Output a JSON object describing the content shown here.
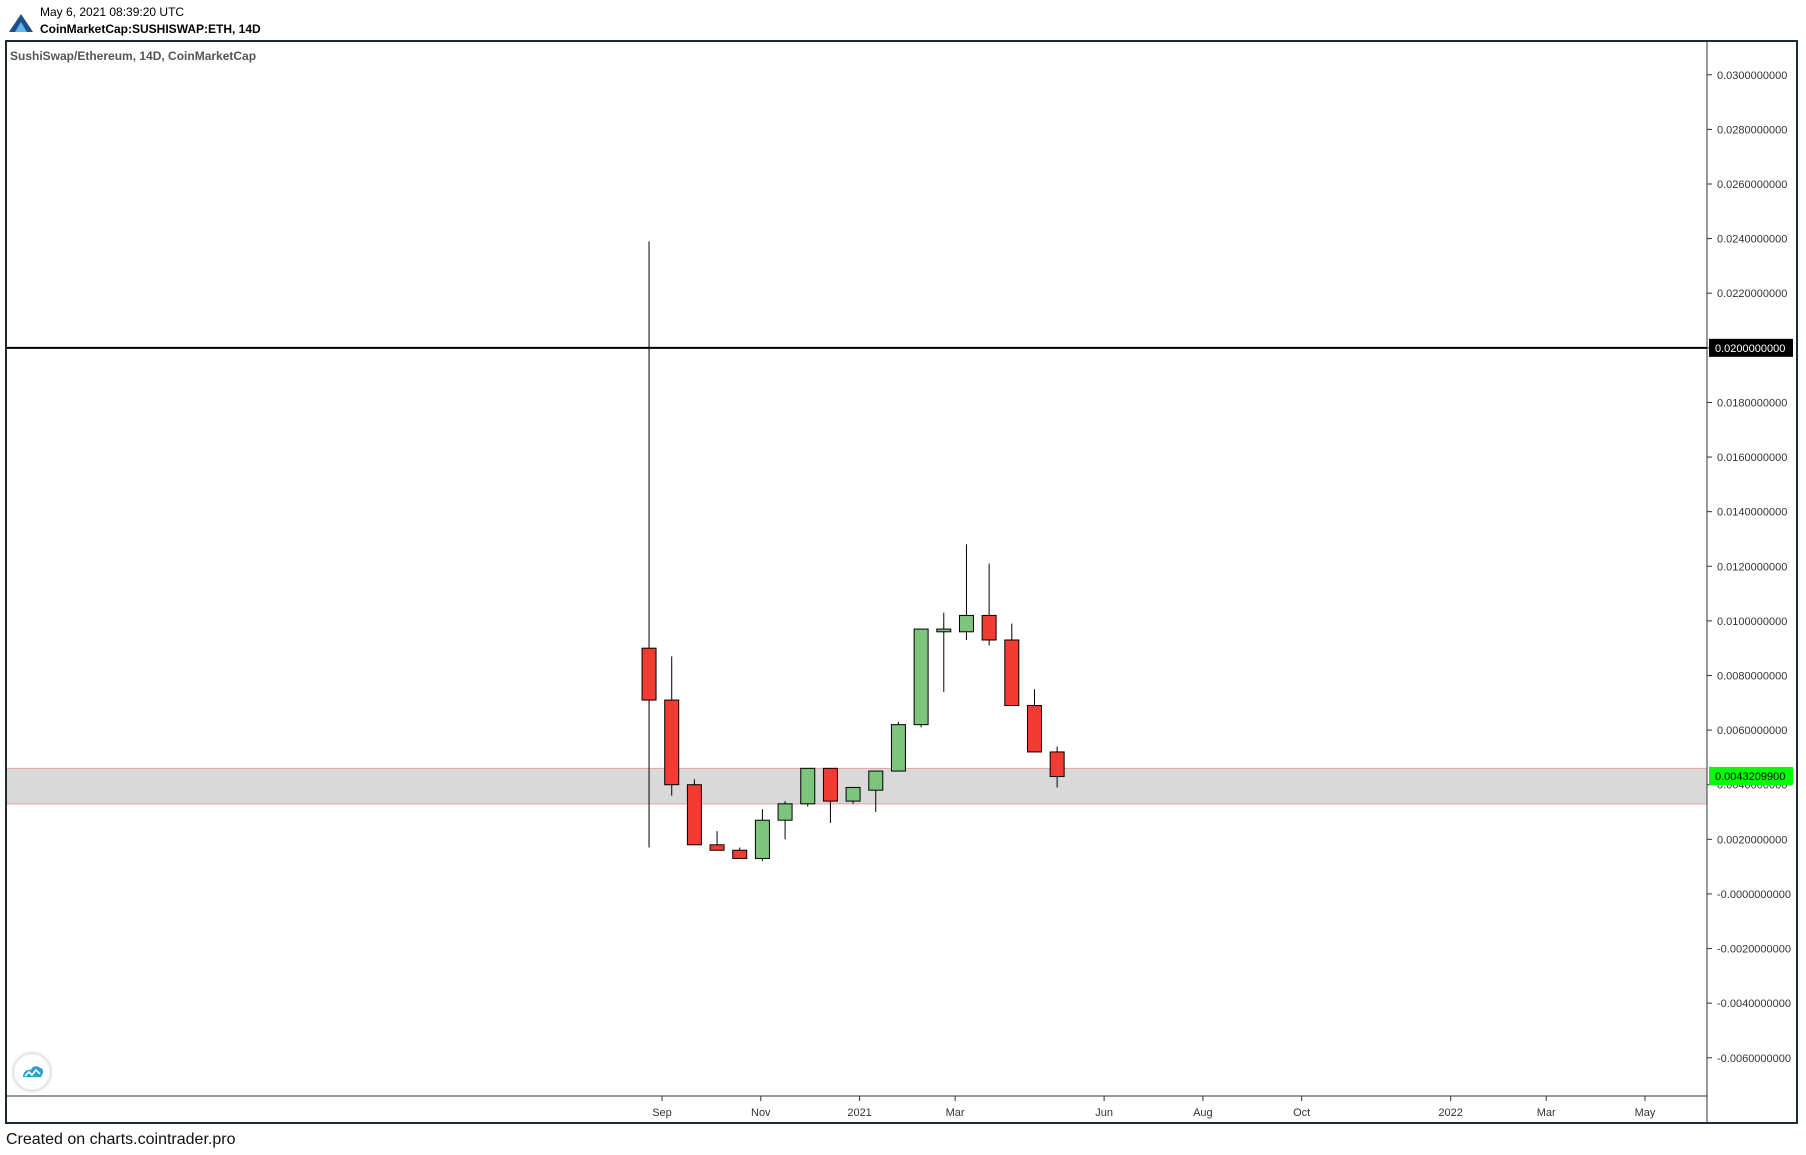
{
  "header": {
    "date": "May 6, 2021 08:39:20 UTC",
    "symbol": "CoinMarketCap:SUSHISWAP:ETH, 14D"
  },
  "chart_title": "SushiSwap/Ethereum, 14D, CoinMarketCap",
  "footer": "Created on charts.cointrader.pro",
  "icons": {
    "logo": "cointrader-logo-icon",
    "badge": "tradingview-icon"
  },
  "colors": {
    "up": "#7dc47d",
    "down": "#f23c32",
    "zone_fill": "#d9d9d9",
    "zone_border": "#e8a0a0",
    "hline": "#000000",
    "price_label_bg": "#00ff00",
    "level_label_bg": "#000000",
    "frame": "#1a2b3c"
  },
  "chart_data": {
    "type": "candlestick",
    "title": "SushiSwap/Ethereum, 14D, CoinMarketCap",
    "ylim": [
      -0.0074,
      0.0312
    ],
    "y_ticks": [
      "0.0300000000",
      "0.0280000000",
      "0.0260000000",
      "0.0240000000",
      "0.0220000000",
      "0.0200000000",
      "0.0180000000",
      "0.0160000000",
      "0.0140000000",
      "0.0120000000",
      "0.0100000000",
      "0.0080000000",
      "0.0060000000",
      "0.0040000000",
      "0.0020000000",
      "-0.0000000000",
      "-0.0020000000",
      "-0.0040000000",
      "-0.0060000000"
    ],
    "x_ticks": [
      {
        "label": "Sep",
        "date": "2020-09-01"
      },
      {
        "label": "Nov",
        "date": "2020-11-01"
      },
      {
        "label": "2021",
        "date": "2021-01-01"
      },
      {
        "label": "Mar",
        "date": "2021-03-01"
      },
      {
        "label": "Jun",
        "date": "2021-06-01"
      },
      {
        "label": "Aug",
        "date": "2021-08-01"
      },
      {
        "label": "Oct",
        "date": "2021-10-01"
      },
      {
        "label": "2022",
        "date": "2022-01-01"
      },
      {
        "label": "Mar",
        "date": "2022-03-01"
      },
      {
        "label": "May",
        "date": "2022-05-01"
      }
    ],
    "candles": [
      {
        "date": "2020-08-24",
        "open": 0.009,
        "high": 0.0239,
        "low": 0.0017,
        "close": 0.0071
      },
      {
        "date": "2020-09-07",
        "open": 0.0071,
        "high": 0.0087,
        "low": 0.0036,
        "close": 0.004
      },
      {
        "date": "2020-09-21",
        "open": 0.004,
        "high": 0.0042,
        "low": 0.0018,
        "close": 0.0018
      },
      {
        "date": "2020-10-05",
        "open": 0.0018,
        "high": 0.0023,
        "low": 0.0016,
        "close": 0.0016
      },
      {
        "date": "2020-10-19",
        "open": 0.0016,
        "high": 0.0017,
        "low": 0.0013,
        "close": 0.0013
      },
      {
        "date": "2020-11-02",
        "open": 0.0013,
        "high": 0.0031,
        "low": 0.0012,
        "close": 0.0027
      },
      {
        "date": "2020-11-16",
        "open": 0.0027,
        "high": 0.0034,
        "low": 0.002,
        "close": 0.0033
      },
      {
        "date": "2020-11-30",
        "open": 0.0033,
        "high": 0.0046,
        "low": 0.0032,
        "close": 0.0046
      },
      {
        "date": "2020-12-14",
        "open": 0.0046,
        "high": 0.0046,
        "low": 0.0026,
        "close": 0.0034
      },
      {
        "date": "2020-12-28",
        "open": 0.0034,
        "high": 0.0039,
        "low": 0.0033,
        "close": 0.0039
      },
      {
        "date": "2021-01-11",
        "open": 0.0038,
        "high": 0.0045,
        "low": 0.003,
        "close": 0.0045
      },
      {
        "date": "2021-01-25",
        "open": 0.0045,
        "high": 0.0063,
        "low": 0.0045,
        "close": 0.0062
      },
      {
        "date": "2021-02-08",
        "open": 0.0062,
        "high": 0.0097,
        "low": 0.0061,
        "close": 0.0097
      },
      {
        "date": "2021-02-22",
        "open": 0.0096,
        "high": 0.0103,
        "low": 0.0074,
        "close": 0.0097
      },
      {
        "date": "2021-03-08",
        "open": 0.0096,
        "high": 0.0128,
        "low": 0.0093,
        "close": 0.0102
      },
      {
        "date": "2021-03-22",
        "open": 0.0102,
        "high": 0.0121,
        "low": 0.0091,
        "close": 0.0093
      },
      {
        "date": "2021-04-05",
        "open": 0.0093,
        "high": 0.0099,
        "low": 0.0069,
        "close": 0.0069
      },
      {
        "date": "2021-04-19",
        "open": 0.0069,
        "high": 0.0075,
        "low": 0.0052,
        "close": 0.0052
      },
      {
        "date": "2021-05-03",
        "open": 0.0052,
        "high": 0.0054,
        "low": 0.0039,
        "close": 0.0043
      }
    ],
    "horizontal_line": {
      "value": 0.02,
      "label": "0.0200000000"
    },
    "zone": {
      "top": 0.0046,
      "bottom": 0.0033
    },
    "last_price": {
      "value": 0.0043209,
      "label": "0.0043209900"
    },
    "grid": false
  }
}
